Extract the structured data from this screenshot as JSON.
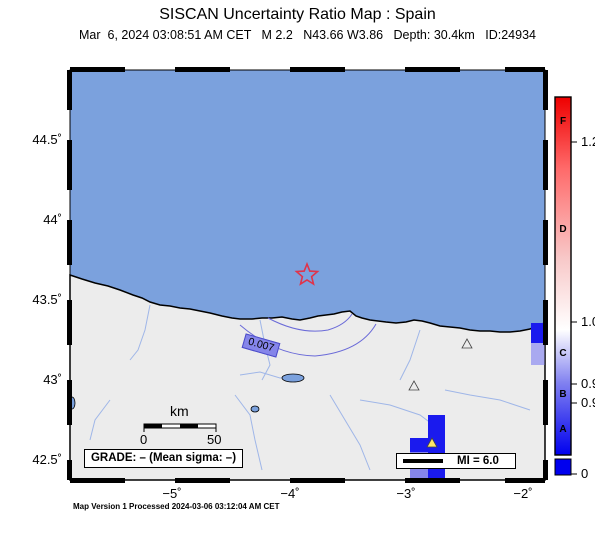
{
  "header": {
    "title": "SISCAN Uncertainty Ratio Map : Spain",
    "event_line": "Mar  6, 2024 03:08:51 AM CET   M 2.2   N43.66 W3.86   Depth: 30.4km   ID:24934"
  },
  "axes": {
    "y_ticks": [
      "44.5˚",
      "44˚",
      "43.5˚",
      "43˚",
      "42.5˚"
    ],
    "x_ticks": [
      "−5˚",
      "−4˚",
      "−3˚",
      "−2˚"
    ]
  },
  "map": {
    "contour_label": "0.007",
    "epicenter": {
      "lat": 43.66,
      "lon": -3.86
    },
    "colors": {
      "sea": "#7ba1dd",
      "land": "#ececec",
      "river": "#9fb6e8",
      "contour": "#6a6ad8",
      "epicenter": "#e0334a",
      "high_uncertainty": "#1a1aee"
    }
  },
  "scale_bar": {
    "unit": "km",
    "start": "0",
    "end": "50"
  },
  "grade_box": {
    "text": "GRADE: – (Mean sigma: –)"
  },
  "mi_legend": {
    "text": "MI = 6.0"
  },
  "colorbar": {
    "letters": [
      "F",
      "D",
      "C",
      "B",
      "A"
    ],
    "values": [
      "1.2",
      "1.0",
      "0.9",
      "0.9",
      "0"
    ]
  },
  "footer": {
    "text": "Map Version 1 Processed 2024-03-06 03:12:04 AM CET"
  }
}
